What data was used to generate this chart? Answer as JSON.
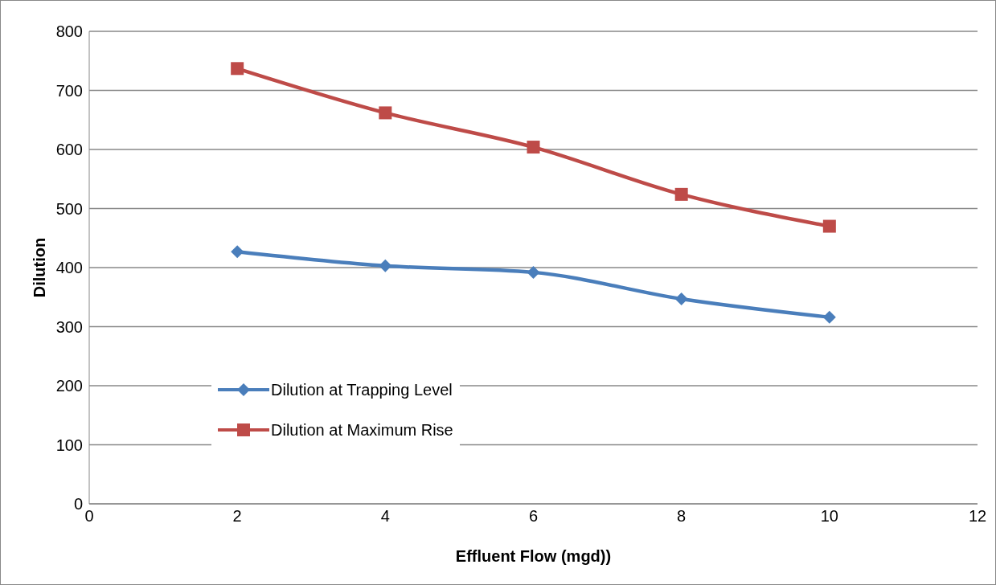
{
  "chart_data": {
    "type": "line",
    "xlabel": "Effluent Flow (mgd))",
    "ylabel": "Dilution",
    "x": [
      2,
      4,
      6,
      8,
      10
    ],
    "series": [
      {
        "name": "Dilution at Trapping Level",
        "color": "#4a7ebb",
        "marker": "diamond",
        "values": [
          427,
          403,
          392,
          347,
          316
        ]
      },
      {
        "name": "Dilution at Maximum Rise",
        "color": "#be4b48",
        "marker": "square",
        "values": [
          737,
          662,
          604,
          524,
          470
        ]
      }
    ],
    "xlim": [
      0,
      12
    ],
    "xticks": [
      0,
      2,
      4,
      6,
      8,
      10,
      12
    ],
    "ylim": [
      0,
      800
    ],
    "yticks": [
      0,
      100,
      200,
      300,
      400,
      500,
      600,
      700,
      800
    ],
    "grid": "y",
    "legend": "bottom left",
    "line_style": "solid"
  }
}
